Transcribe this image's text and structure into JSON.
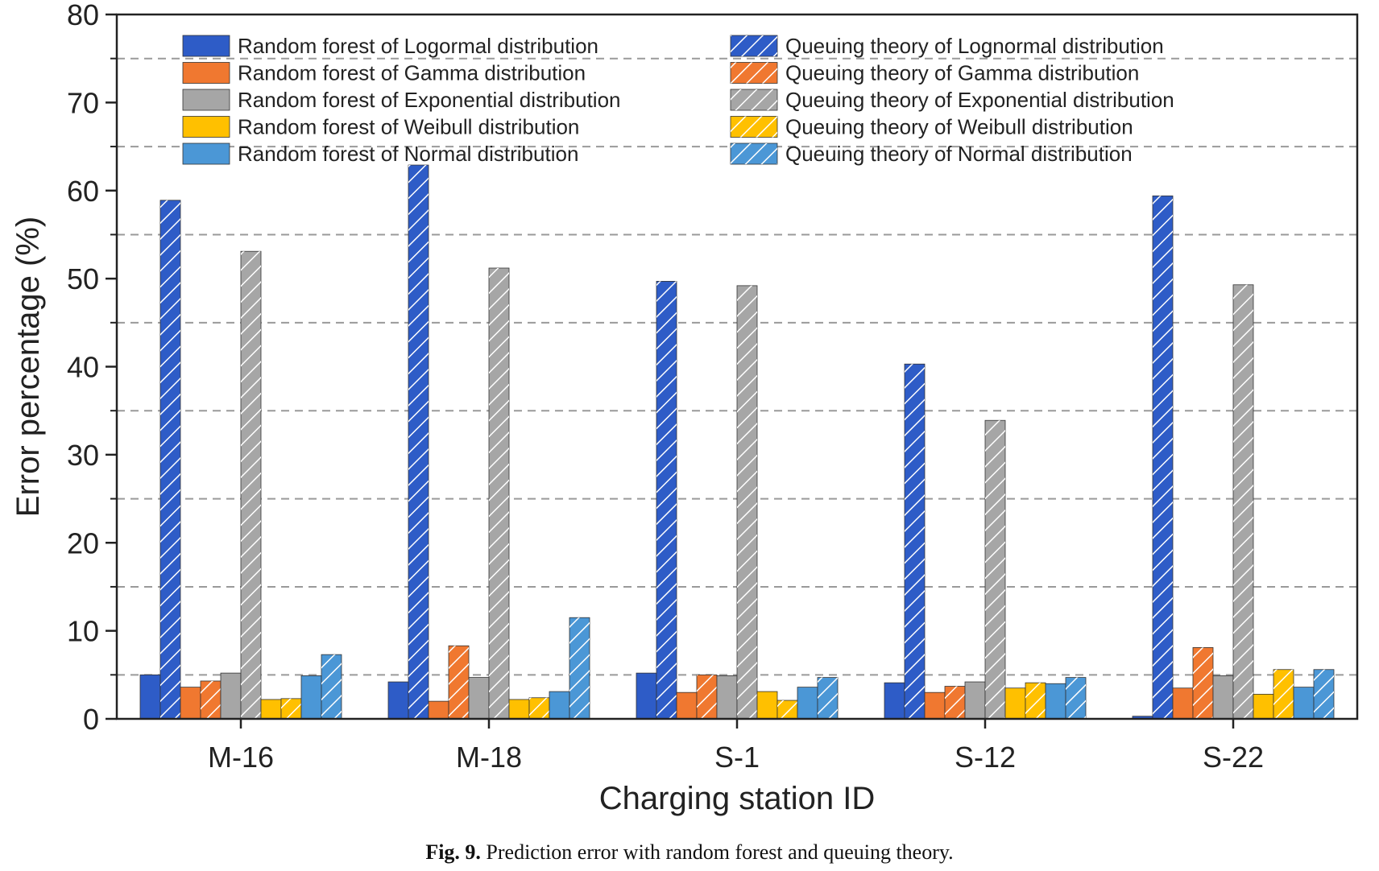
{
  "chart_data": {
    "type": "bar",
    "xlabel": "Charging station ID",
    "ylabel": "Error percentage (%)",
    "ylim": [
      0,
      80
    ],
    "yticks": [
      0,
      10,
      20,
      30,
      40,
      50,
      60,
      70,
      80
    ],
    "gridlines": [
      5,
      15,
      25,
      35,
      45,
      55,
      65,
      75
    ],
    "grid": "dashed horizontal",
    "legend_placement": "top, two columns",
    "categories": [
      "M-16",
      "M-18",
      "S-1",
      "S-12",
      "S-22"
    ],
    "series": [
      {
        "name": "Random forest of Logormal distribution",
        "method": "random-forest",
        "color": "#2e5cc7",
        "values": [
          5.0,
          4.2,
          5.2,
          4.1,
          0.3
        ]
      },
      {
        "name": "Queuing theory of Lognormal distribution",
        "method": "queuing-theory",
        "color": "#2e5cc7",
        "values": [
          58.9,
          62.9,
          49.7,
          40.3,
          59.4
        ]
      },
      {
        "name": "Random forest of Gamma distribution",
        "method": "random-forest",
        "color": "#f07830",
        "values": [
          3.6,
          2.0,
          3.0,
          3.0,
          3.5
        ]
      },
      {
        "name": "Queuing theory of Gamma distribution",
        "method": "queuing-theory",
        "color": "#f07830",
        "values": [
          4.3,
          8.3,
          5.0,
          3.7,
          8.1
        ]
      },
      {
        "name": "Random forest of Exponential distribution",
        "method": "random-forest",
        "color": "#a6a6a6",
        "values": [
          5.2,
          4.7,
          4.9,
          4.2,
          4.9
        ]
      },
      {
        "name": "Queuing theory of Exponential distribution",
        "method": "queuing-theory",
        "color": "#a6a6a6",
        "values": [
          53.1,
          51.2,
          49.2,
          33.9,
          49.3
        ]
      },
      {
        "name": "Random forest of Weibull distribution",
        "method": "random-forest",
        "color": "#ffc000",
        "values": [
          2.2,
          2.2,
          3.1,
          3.5,
          2.8
        ]
      },
      {
        "name": "Queuing theory of Weibull distribution",
        "method": "queuing-theory",
        "color": "#ffc000",
        "values": [
          2.3,
          2.4,
          2.1,
          4.1,
          5.6
        ]
      },
      {
        "name": "Random forest of Normal distribution",
        "method": "random-forest",
        "color": "#4b97d6",
        "values": [
          4.9,
          3.1,
          3.6,
          4.0,
          3.6
        ]
      },
      {
        "name": "Queuing theory of Normal distribution",
        "method": "queuing-theory",
        "color": "#4b97d6",
        "values": [
          7.3,
          11.5,
          4.7,
          4.7,
          5.6
        ]
      }
    ],
    "legend_order": [
      [
        "Random forest of Logormal distribution",
        "Queuing theory of Lognormal distribution"
      ],
      [
        "Random forest of Gamma distribution",
        "Queuing theory of Gamma distribution"
      ],
      [
        "Random forest of Exponential distribution",
        "Queuing theory of Exponential distribution"
      ],
      [
        "Random forest of Weibull distribution",
        "Queuing theory of Weibull distribution"
      ],
      [
        "Random forest of Normal distribution",
        "Queuing theory of Normal distribution"
      ]
    ]
  },
  "caption": {
    "figure_number": "Fig. 9.",
    "text": "Prediction error with random forest and queuing theory."
  }
}
